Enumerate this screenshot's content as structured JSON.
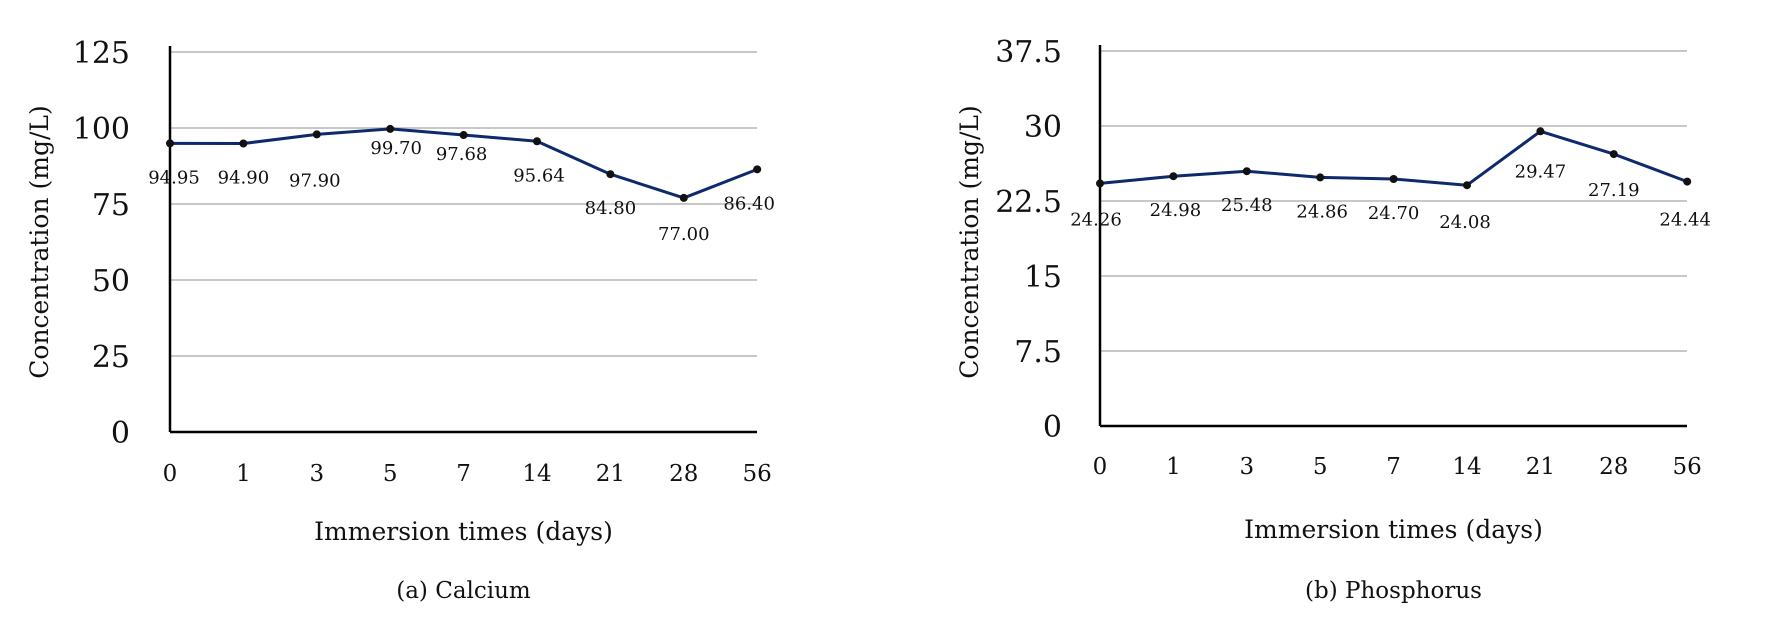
{
  "chart_data": [
    {
      "type": "line",
      "caption": "(a) Calcium",
      "xlabel": "Immersion times (days)",
      "ylabel": "Concentration (mg/L)",
      "categories": [
        "0",
        "1",
        "3",
        "5",
        "7",
        "14",
        "21",
        "28",
        "56"
      ],
      "ylim": [
        0,
        125
      ],
      "yticks": [
        "0",
        "25",
        "50",
        "75",
        "100",
        "125"
      ],
      "grid": true,
      "series": [
        {
          "values": [
            94.95,
            94.9,
            97.9,
            99.7,
            97.68,
            95.64,
            84.8,
            77.0,
            86.4
          ],
          "labels": [
            "94.95",
            "94.90",
            "97.90",
            "99.70",
            "97.68",
            "95.64",
            "84.80",
            "77.00",
            "86.40"
          ]
        }
      ]
    },
    {
      "type": "line",
      "caption": "(b) Phosphorus",
      "xlabel": "Immersion times (days)",
      "ylabel": "Concentration (mg/L)",
      "categories": [
        "0",
        "1",
        "3",
        "5",
        "7",
        "14",
        "21",
        "28",
        "56"
      ],
      "ylim": [
        0,
        37.5
      ],
      "yticks": [
        "0",
        "7.5",
        "15",
        "22.5",
        "30",
        "37.5"
      ],
      "grid": true,
      "series": [
        {
          "values": [
            24.26,
            24.98,
            25.48,
            24.86,
            24.7,
            24.08,
            29.47,
            27.19,
            24.44
          ],
          "labels": [
            "24.26",
            "24.98",
            "25.48",
            "24.86",
            "24.70",
            "24.08",
            "29.47",
            "27.19",
            "24.44"
          ]
        }
      ]
    }
  ],
  "style": {
    "line_color": "#0d2a6b",
    "marker_color": "#111111",
    "grid_color": "#c8c8c8",
    "axis_color": "#000000"
  }
}
